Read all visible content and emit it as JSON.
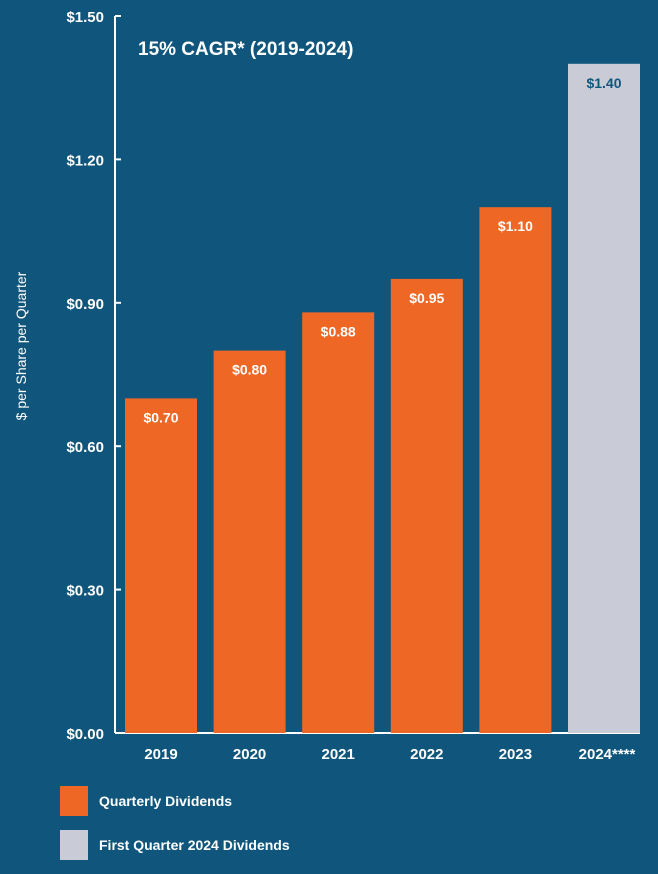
{
  "chart_data": {
    "type": "bar",
    "title": "15% CAGR* (2019-2024)",
    "xlabel": "",
    "ylabel": "$ per Share per Quarter",
    "ylim": [
      0,
      1.5
    ],
    "yticks": [
      0.0,
      0.3,
      0.6,
      0.9,
      1.2,
      1.5
    ],
    "ytick_labels": [
      "$0.00",
      "$0.30",
      "$0.60",
      "$0.90",
      "$1.20",
      "$1.50"
    ],
    "categories": [
      "2019",
      "2020",
      "2021",
      "2022",
      "2023",
      "2024****"
    ],
    "values": [
      0.7,
      0.8,
      0.88,
      0.95,
      1.1,
      1.4
    ],
    "value_labels": [
      "$0.70",
      "$0.80",
      "$0.88",
      "$0.95",
      "$1.10",
      "$1.40"
    ],
    "bar_series": [
      "quarterly",
      "quarterly",
      "quarterly",
      "quarterly",
      "quarterly",
      "first_quarter"
    ],
    "series": [
      {
        "key": "quarterly",
        "name": "Quarterly Dividends",
        "color": "#ee6724"
      },
      {
        "key": "first_quarter",
        "name": "First Quarter 2024 Dividends",
        "color": "#c9ccd6"
      }
    ],
    "label_colors": {
      "quarterly": "#ffffff",
      "first_quarter": "#10567c"
    },
    "grid": false,
    "legend_position": "bottom-left"
  }
}
